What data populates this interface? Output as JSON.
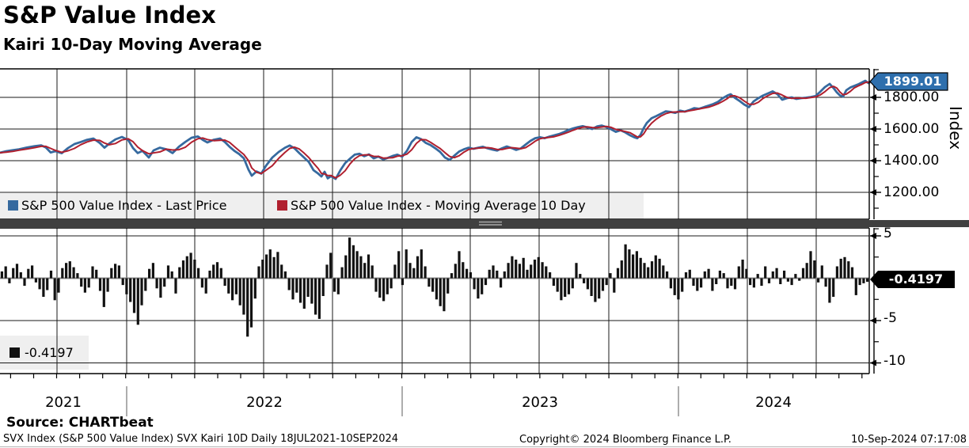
{
  "header": {
    "title": "S&P Value Index",
    "subtitle": "Kairi 10-Day Moving Average"
  },
  "top_panel": {
    "axis_label": "Index",
    "last_price_tag": "1899.01",
    "y_tick_labels": [
      "1800.00",
      "1600.00",
      "1400.00",
      "1200.00"
    ],
    "legend": [
      {
        "label": "S&P 500 Value Index - Last Price",
        "color": "#366a9f"
      },
      {
        "label": "S&P 500 Value Index - Moving Average 10 Day",
        "color": "#b01f2e"
      }
    ]
  },
  "bottom_panel": {
    "legend_value": "-0.4197",
    "value_tag": "-0.4197",
    "y_tick_labels": [
      "5",
      "-5",
      "-10"
    ]
  },
  "x_axis": {
    "year_labels": [
      "2021",
      "2022",
      "2023",
      "2024"
    ]
  },
  "footer": {
    "source": "Source: CHARTbeat",
    "footnote": "SVX Index (S&P 500 Value Index) SVX Kairi 10D  Daily 18JUL2021-10SEP2024",
    "copyright": "Copyright© 2024 Bloomberg Finance L.P.",
    "timestamp": "10-Sep-2024 07:17:08"
  },
  "colors": {
    "price_line": "#366a9f",
    "ma_line": "#b01f2e",
    "bars": "#121212",
    "price_tag_bg": "#2e6fad",
    "value_tag_bg": "#000000",
    "legend_bg": "#efefef",
    "grid": "#1a1a1a",
    "zero_line": "#8c8c8c",
    "separator": "#404040"
  },
  "chart_data": [
    {
      "type": "line",
      "panel": "top",
      "title": "S&P Value Index",
      "ylabel": "Index",
      "x_range_dates": [
        "18JUL2021",
        "10SEP2024"
      ],
      "ylim": [
        1030,
        1980
      ],
      "y_ticks": [
        1800,
        1600,
        1400,
        1200
      ],
      "grid": true,
      "legend_position": "bottom-band",
      "last_price": 1899.01,
      "x_unit": "plot px, 0 = 18JUL2021, 1098 = 10SEP2024",
      "series": [
        {
          "name": "S&P 500 Value Index - Last Price",
          "color": "#366a9f",
          "points": [
            [
              0,
              1450
            ],
            [
              8,
              1460
            ],
            [
              16,
              1466
            ],
            [
              24,
              1472
            ],
            [
              34,
              1483
            ],
            [
              44,
              1492
            ],
            [
              52,
              1497
            ],
            [
              58,
              1483
            ],
            [
              64,
              1452
            ],
            [
              70,
              1460
            ],
            [
              78,
              1447
            ],
            [
              86,
              1480
            ],
            [
              94,
              1505
            ],
            [
              102,
              1518
            ],
            [
              110,
              1532
            ],
            [
              118,
              1540
            ],
            [
              126,
              1512
            ],
            [
              132,
              1482
            ],
            [
              138,
              1508
            ],
            [
              146,
              1535
            ],
            [
              154,
              1550
            ],
            [
              162,
              1530
            ],
            [
              168,
              1480
            ],
            [
              174,
              1448
            ],
            [
              180,
              1462
            ],
            [
              188,
              1420
            ],
            [
              194,
              1465
            ],
            [
              202,
              1482
            ],
            [
              210,
              1472
            ],
            [
              218,
              1448
            ],
            [
              226,
              1488
            ],
            [
              234,
              1518
            ],
            [
              242,
              1545
            ],
            [
              250,
              1553
            ],
            [
              256,
              1532
            ],
            [
              262,
              1515
            ],
            [
              270,
              1532
            ],
            [
              278,
              1540
            ],
            [
              284,
              1518
            ],
            [
              290,
              1488
            ],
            [
              296,
              1462
            ],
            [
              302,
              1442
            ],
            [
              308,
              1415
            ],
            [
              314,
              1342
            ],
            [
              318,
              1305
            ],
            [
              324,
              1332
            ],
            [
              330,
              1318
            ],
            [
              336,
              1368
            ],
            [
              344,
              1420
            ],
            [
              352,
              1455
            ],
            [
              360,
              1482
            ],
            [
              366,
              1496
            ],
            [
              372,
              1478
            ],
            [
              378,
              1448
            ],
            [
              384,
              1420
            ],
            [
              390,
              1392
            ],
            [
              396,
              1340
            ],
            [
              402,
              1318
            ],
            [
              406,
              1300
            ],
            [
              410,
              1330
            ],
            [
              414,
              1288
            ],
            [
              418,
              1302
            ],
            [
              424,
              1285
            ],
            [
              430,
              1340
            ],
            [
              436,
              1385
            ],
            [
              442,
              1412
            ],
            [
              448,
              1438
            ],
            [
              454,
              1444
            ],
            [
              460,
              1428
            ],
            [
              466,
              1440
            ],
            [
              472,
              1415
            ],
            [
              478,
              1426
            ],
            [
              484,
              1408
            ],
            [
              490,
              1418
            ],
            [
              496,
              1430
            ],
            [
              502,
              1438
            ],
            [
              508,
              1425
            ],
            [
              514,
              1462
            ],
            [
              520,
              1518
            ],
            [
              526,
              1548
            ],
            [
              532,
              1536
            ],
            [
              538,
              1512
            ],
            [
              544,
              1498
            ],
            [
              550,
              1478
            ],
            [
              556,
              1455
            ],
            [
              562,
              1420
            ],
            [
              568,
              1405
            ],
            [
              574,
              1432
            ],
            [
              580,
              1458
            ],
            [
              586,
              1472
            ],
            [
              592,
              1482
            ],
            [
              598,
              1475
            ],
            [
              604,
              1482
            ],
            [
              610,
              1488
            ],
            [
              616,
              1478
            ],
            [
              622,
              1470
            ],
            [
              628,
              1464
            ],
            [
              634,
              1478
            ],
            [
              640,
              1490
            ],
            [
              646,
              1480
            ],
            [
              652,
              1468
            ],
            [
              658,
              1478
            ],
            [
              664,
              1502
            ],
            [
              670,
              1525
            ],
            [
              676,
              1542
            ],
            [
              682,
              1548
            ],
            [
              688,
              1542
            ],
            [
              694,
              1552
            ],
            [
              700,
              1560
            ],
            [
              706,
              1568
            ],
            [
              712,
              1580
            ],
            [
              718,
              1594
            ],
            [
              724,
              1604
            ],
            [
              730,
              1612
            ],
            [
              736,
              1618
            ],
            [
              742,
              1610
            ],
            [
              748,
              1600
            ],
            [
              754,
              1616
            ],
            [
              760,
              1622
            ],
            [
              766,
              1612
            ],
            [
              772,
              1598
            ],
            [
              778,
              1582
            ],
            [
              784,
              1592
            ],
            [
              790,
              1578
            ],
            [
              796,
              1560
            ],
            [
              801,
              1548
            ],
            [
              805,
              1542
            ],
            [
              809,
              1562
            ],
            [
              813,
              1605
            ],
            [
              817,
              1638
            ],
            [
              823,
              1668
            ],
            [
              829,
              1682
            ],
            [
              835,
              1697
            ],
            [
              841,
              1712
            ],
            [
              847,
              1708
            ],
            [
              853,
              1702
            ],
            [
              859,
              1716
            ],
            [
              865,
              1710
            ],
            [
              871,
              1720
            ],
            [
              877,
              1732
            ],
            [
              883,
              1728
            ],
            [
              889,
              1738
            ],
            [
              895,
              1748
            ],
            [
              901,
              1758
            ],
            [
              907,
              1772
            ],
            [
              913,
              1795
            ],
            [
              919,
              1812
            ],
            [
              923,
              1820
            ],
            [
              928,
              1798
            ],
            [
              934,
              1778
            ],
            [
              940,
              1755
            ],
            [
              946,
              1738
            ],
            [
              952,
              1775
            ],
            [
              958,
              1795
            ],
            [
              964,
              1812
            ],
            [
              970,
              1825
            ],
            [
              976,
              1838
            ],
            [
              982,
              1820
            ],
            [
              988,
              1785
            ],
            [
              994,
              1795
            ],
            [
              1000,
              1800
            ],
            [
              1006,
              1790
            ],
            [
              1012,
              1795
            ],
            [
              1018,
              1798
            ],
            [
              1024,
              1802
            ],
            [
              1030,
              1808
            ],
            [
              1036,
              1835
            ],
            [
              1042,
              1865
            ],
            [
              1048,
              1885
            ],
            [
              1053,
              1858
            ],
            [
              1057,
              1832
            ],
            [
              1061,
              1812
            ],
            [
              1065,
              1805
            ],
            [
              1069,
              1845
            ],
            [
              1074,
              1862
            ],
            [
              1079,
              1872
            ],
            [
              1084,
              1882
            ],
            [
              1089,
              1895
            ],
            [
              1093,
              1905
            ],
            [
              1097,
              1890
            ],
            [
              1100,
              1899
            ]
          ]
        },
        {
          "name": "S&P 500 Value Index - Moving Average 10 Day",
          "color": "#b01f2e",
          "derived": "10-day trailing moving average of Last Price series"
        }
      ]
    },
    {
      "type": "bar",
      "panel": "bottom",
      "name": "SVX Kairi 10D",
      "last_value": -0.4197,
      "ylim": [
        -11.5,
        6
      ],
      "y_ticks": [
        5,
        -5,
        -10
      ],
      "grid": true,
      "bar_color": "#121212",
      "x_unit": "230 equal-spaced daily-cluster bars, 18JUL2021 to 10SEP2024",
      "values": [
        0.8,
        1.4,
        -0.6,
        1.2,
        1.7,
        0.7,
        -0.9,
        1.1,
        1.5,
        -0.5,
        -1.3,
        -2.2,
        -1.4,
        0.9,
        -2.6,
        -1.7,
        1.2,
        1.8,
        2.0,
        1.3,
        0.6,
        -1.0,
        -1.7,
        -1.1,
        1.4,
        1.0,
        -1.5,
        -3.4,
        -1.6,
        1.2,
        1.7,
        1.5,
        -0.8,
        -1.9,
        -2.8,
        -4.1,
        -5.5,
        -3.2,
        -1.5,
        1.1,
        1.8,
        -1.2,
        -2.3,
        -1.0,
        1.5,
        0.8,
        -1.8,
        1.3,
        2.1,
        2.6,
        3.0,
        2.2,
        1.2,
        -1.1,
        -1.8,
        0.9,
        1.6,
        1.9,
        1.2,
        -0.9,
        -1.8,
        -2.6,
        -1.9,
        -3.2,
        -4.3,
        -6.9,
        -5.8,
        -2.4,
        1.4,
        2.2,
        2.8,
        3.4,
        2.5,
        3.1,
        1.6,
        0.8,
        -1.4,
        -2.5,
        -1.7,
        -2.9,
        -3.6,
        -2.2,
        -3.0,
        -4.3,
        -4.8,
        -2.1,
        1.6,
        3.0,
        -1.6,
        -1.9,
        1.3,
        2.7,
        4.8,
        3.9,
        3.2,
        2.6,
        1.8,
        2.8,
        1.5,
        -1.6,
        -2.3,
        -2.7,
        -1.9,
        -1.2,
        1.6,
        3.2,
        -0.8,
        3.4,
        1.8,
        1.2,
        2.6,
        3.4,
        1.4,
        -1.0,
        -1.6,
        -2.5,
        -3.3,
        -3.9,
        -1.8,
        0.6,
        1.7,
        3.2,
        1.9,
        1.1,
        0.7,
        -1.3,
        -2.4,
        -1.9,
        -0.8,
        1.0,
        1.5,
        0.9,
        -1.1,
        0.8,
        1.8,
        2.6,
        2.2,
        1.7,
        2.4,
        1.0,
        1.6,
        2.2,
        2.5,
        1.9,
        1.4,
        0.7,
        -0.9,
        -1.6,
        -2.6,
        -2.2,
        -1.9,
        -1.2,
        1.8,
        0.5,
        -0.6,
        -1.3,
        -2.1,
        -2.8,
        -2.4,
        -1.5,
        -0.8,
        0.6,
        -1.7,
        1.2,
        2.1,
        4.0,
        3.4,
        2.8,
        3.2,
        2.4,
        1.8,
        1.3,
        2.0,
        2.7,
        2.3,
        1.5,
        0.8,
        -1.2,
        -2.0,
        -2.5,
        -1.6,
        0.7,
        1.0,
        -0.9,
        -1.5,
        -1.1,
        0.8,
        1.1,
        -1.5,
        -0.7,
        0.9,
        0.6,
        -1.2,
        -0.9,
        -1.3,
        1.4,
        2.2,
        1.1,
        -0.8,
        -1.1,
        0.5,
        -0.9,
        1.4,
        -0.6,
        0.8,
        1.2,
        -0.7,
        0.9,
        -0.4,
        -0.8,
        0.5,
        -0.3,
        1.2,
        1.8,
        3.2,
        2.1,
        -0.5,
        1.5,
        -1.0,
        -2.9,
        -2.2,
        1.4,
        2.3,
        2.5,
        2.0,
        1.3,
        -2.0,
        -0.8,
        -0.6,
        -0.42
      ]
    }
  ]
}
